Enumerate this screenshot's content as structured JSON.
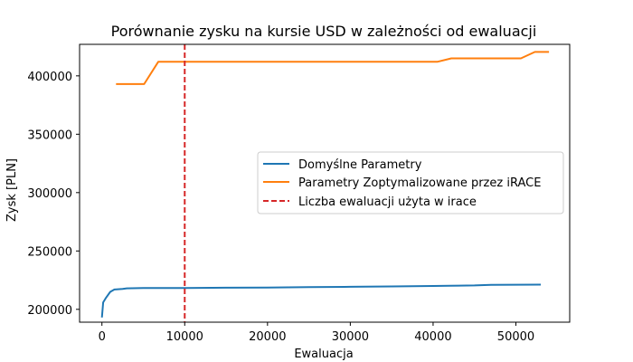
{
  "chart_data": {
    "type": "line",
    "title": "Porównanie zysku na kursie USD w zależności od ewaluacji",
    "xlabel": "Ewaluacja",
    "ylabel": "Zysk [PLN]",
    "xlim": [
      -2700,
      56500
    ],
    "ylim": [
      189000,
      427000
    ],
    "xticks": [
      0,
      10000,
      20000,
      30000,
      40000,
      50000
    ],
    "yticks": [
      200000,
      250000,
      300000,
      350000,
      400000
    ],
    "grid": false,
    "legend_position": "center-right",
    "series": [
      {
        "name": "Domyślne Parametry",
        "color": "#1f77b4",
        "style": "solid",
        "points": [
          [
            0,
            193000
          ],
          [
            150,
            206000
          ],
          [
            500,
            210000
          ],
          [
            1000,
            215000
          ],
          [
            1500,
            217000
          ],
          [
            2500,
            217500
          ],
          [
            3000,
            218000
          ],
          [
            5000,
            218200
          ],
          [
            10000,
            218300
          ],
          [
            15000,
            218500
          ],
          [
            20000,
            218700
          ],
          [
            25000,
            219000
          ],
          [
            30000,
            219300
          ],
          [
            35000,
            219600
          ],
          [
            40000,
            220000
          ],
          [
            42000,
            220200
          ],
          [
            45000,
            220500
          ],
          [
            47000,
            221000
          ],
          [
            50000,
            221100
          ],
          [
            53000,
            221200
          ]
        ]
      },
      {
        "name": "Parametry Zoptymalizowane przez iRACE",
        "color": "#ff7f0e",
        "style": "solid",
        "points": [
          [
            1700,
            393000
          ],
          [
            5100,
            393000
          ],
          [
            6800,
            412000
          ],
          [
            40500,
            412000
          ],
          [
            42200,
            415000
          ],
          [
            50600,
            415000
          ],
          [
            52300,
            420500
          ],
          [
            54000,
            420500
          ]
        ]
      },
      {
        "name": "Liczba ewaluacji użyta w irace",
        "color": "#d62728",
        "style": "dashed",
        "vline_x": 10000
      }
    ]
  }
}
